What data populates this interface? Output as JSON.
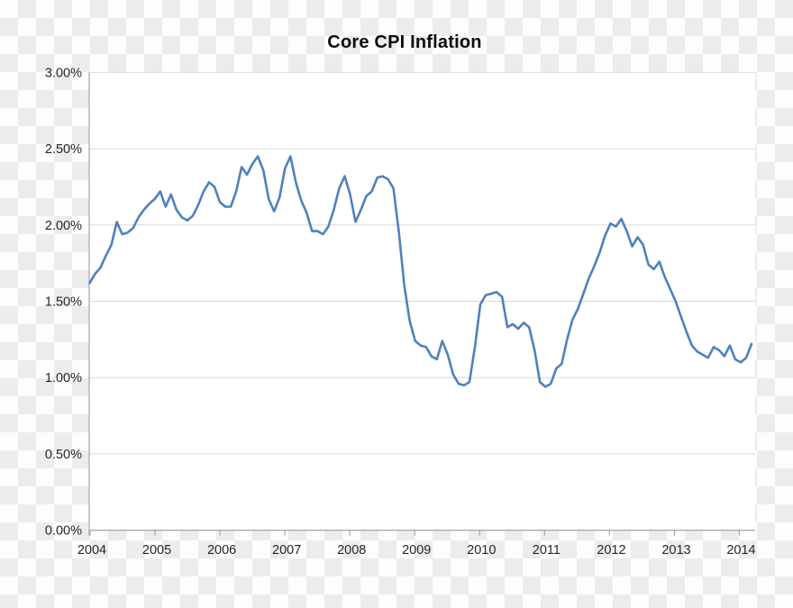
{
  "title": "Core CPI Inflation",
  "colors": {
    "line": "#4F81BD",
    "gridline": "#D9D9D9",
    "axis": "#A6A6A6",
    "tick_text": "#262626",
    "title_text": "#0d0d0d",
    "plot_background": "#FFFFFF",
    "checker_gray": "#ECECEC",
    "checker_white": "#FDFDFD"
  },
  "y_axis": {
    "tick_labels": [
      "3.00%",
      "2.50%",
      "2.00%",
      "1.50%",
      "1.00%",
      "0.50%",
      "0.00%"
    ],
    "min": 0,
    "max": 3,
    "step": 0.5,
    "unit": "%"
  },
  "x_axis": {
    "tick_labels": [
      "2004",
      "2005",
      "2006",
      "2007",
      "2008",
      "2009",
      "2010",
      "2011",
      "2012",
      "2013",
      "2014"
    ]
  },
  "chart_data": {
    "type": "line",
    "title": "Core CPI Inflation",
    "frequency": "monthly",
    "x_start": "2004-01",
    "x_end": "2014-03",
    "unit": "percent year-over-year",
    "ylim": [
      0,
      3
    ],
    "y_tick_step": 0.5,
    "grid": "horizontal",
    "legend_position": "none",
    "x_tick_labels": [
      "2004",
      "2005",
      "2006",
      "2007",
      "2008",
      "2009",
      "2010",
      "2011",
      "2012",
      "2013",
      "2014"
    ],
    "series": [
      {
        "name": "Core CPI Inflation",
        "values": [
          1.62,
          1.68,
          1.72,
          1.8,
          1.87,
          2.02,
          1.94,
          1.95,
          1.98,
          2.05,
          2.1,
          2.14,
          2.17,
          2.22,
          2.12,
          2.2,
          2.1,
          2.05,
          2.03,
          2.06,
          2.13,
          2.22,
          2.28,
          2.25,
          2.15,
          2.12,
          2.12,
          2.22,
          2.38,
          2.33,
          2.4,
          2.45,
          2.36,
          2.17,
          2.09,
          2.18,
          2.37,
          2.45,
          2.28,
          2.16,
          2.08,
          1.96,
          1.96,
          1.94,
          1.99,
          2.1,
          2.24,
          2.32,
          2.2,
          2.02,
          2.1,
          2.19,
          2.22,
          2.31,
          2.32,
          2.3,
          2.24,
          1.95,
          1.6,
          1.37,
          1.24,
          1.21,
          1.2,
          1.14,
          1.12,
          1.24,
          1.15,
          1.02,
          0.96,
          0.95,
          0.97,
          1.2,
          1.48,
          1.54,
          1.55,
          1.56,
          1.53,
          1.33,
          1.35,
          1.32,
          1.36,
          1.33,
          1.18,
          0.97,
          0.94,
          0.96,
          1.06,
          1.09,
          1.25,
          1.38,
          1.45,
          1.55,
          1.65,
          1.73,
          1.82,
          1.93,
          2.01,
          1.99,
          2.04,
          1.96,
          1.86,
          1.92,
          1.87,
          1.74,
          1.71,
          1.76,
          1.66,
          1.58,
          1.5,
          1.4,
          1.3,
          1.21,
          1.17,
          1.15,
          1.13,
          1.2,
          1.18,
          1.14,
          1.21,
          1.12,
          1.1,
          1.13,
          1.22
        ]
      }
    ]
  }
}
